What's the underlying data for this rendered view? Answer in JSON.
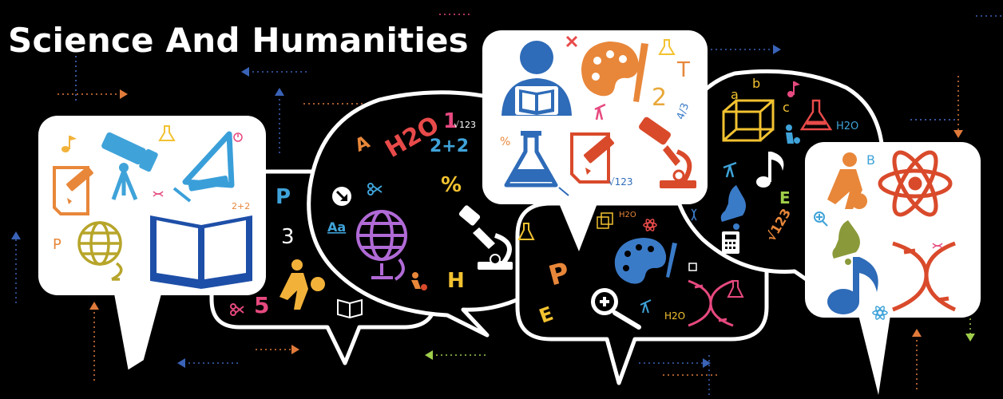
{
  "banner": {
    "title": "Science And Humanities",
    "glyphs": {
      "letter_p": "P",
      "letter_h": "H",
      "letter_e": "E",
      "letter_a": "A",
      "letter_b": "B",
      "letter_t": "T",
      "letter_a_small": "a",
      "letter_b_small": "b",
      "letter_c_small": "c",
      "num_2": "2",
      "num_3": "3",
      "num_5": "5",
      "num_1": "1",
      "formula_h2o": "H2O",
      "formula_sum": "2+2",
      "percent": "%",
      "aa": "Aa",
      "sqrt_123": "√123",
      "fraction": "4/3"
    }
  },
  "palette": {
    "background": "#000000",
    "bubble_outline": "#ffffff",
    "blue": "#3a63b8",
    "orange": "#e8873a",
    "red": "#d94a2b",
    "yellow": "#f2c230",
    "purple": "#9a5fc9",
    "green": "#9fce4a",
    "cyan": "#3fa3d9",
    "pink": "#e6497f"
  }
}
